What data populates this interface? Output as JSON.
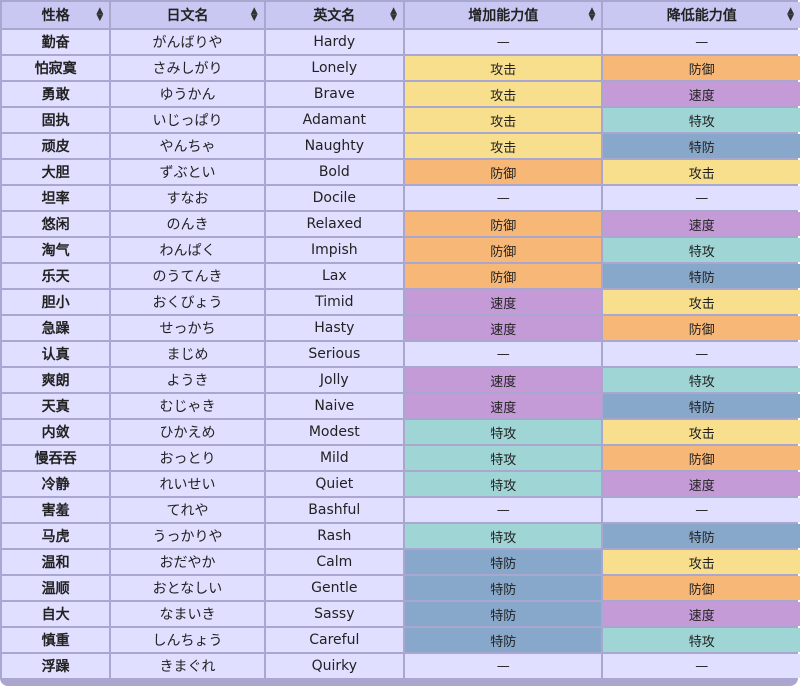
{
  "headers": [
    {
      "label": "性格"
    },
    {
      "label": "日文名"
    },
    {
      "label": "英文名"
    },
    {
      "label": "增加能力值"
    },
    {
      "label": "降低能力值"
    }
  ],
  "sort_glyph_up": "▲",
  "sort_glyph_down": "▼",
  "stat_colors": {
    "攻击": "#f8df8d",
    "防御": "#f7b877",
    "速度": "#c49bd6",
    "特攻": "#a0d5d6",
    "特防": "#87a8ca",
    "—": "#e0dfff"
  },
  "rows": [
    {
      "nature": "勤奋",
      "ja": "がんばりや",
      "en": "Hardy",
      "up": "—",
      "down": "—"
    },
    {
      "nature": "怕寂寞",
      "ja": "さみしがり",
      "en": "Lonely",
      "up": "攻击",
      "down": "防御"
    },
    {
      "nature": "勇敢",
      "ja": "ゆうかん",
      "en": "Brave",
      "up": "攻击",
      "down": "速度"
    },
    {
      "nature": "固执",
      "ja": "いじっぱり",
      "en": "Adamant",
      "up": "攻击",
      "down": "特攻"
    },
    {
      "nature": "顽皮",
      "ja": "やんちゃ",
      "en": "Naughty",
      "up": "攻击",
      "down": "特防"
    },
    {
      "nature": "大胆",
      "ja": "ずぶとい",
      "en": "Bold",
      "up": "防御",
      "down": "攻击"
    },
    {
      "nature": "坦率",
      "ja": "すなお",
      "en": "Docile",
      "up": "—",
      "down": "—"
    },
    {
      "nature": "悠闲",
      "ja": "のんき",
      "en": "Relaxed",
      "up": "防御",
      "down": "速度"
    },
    {
      "nature": "淘气",
      "ja": "わんぱく",
      "en": "Impish",
      "up": "防御",
      "down": "特攻"
    },
    {
      "nature": "乐天",
      "ja": "のうてんき",
      "en": "Lax",
      "up": "防御",
      "down": "特防"
    },
    {
      "nature": "胆小",
      "ja": "おくびょう",
      "en": "Timid",
      "up": "速度",
      "down": "攻击"
    },
    {
      "nature": "急躁",
      "ja": "せっかち",
      "en": "Hasty",
      "up": "速度",
      "down": "防御"
    },
    {
      "nature": "认真",
      "ja": "まじめ",
      "en": "Serious",
      "up": "—",
      "down": "—"
    },
    {
      "nature": "爽朗",
      "ja": "ようき",
      "en": "Jolly",
      "up": "速度",
      "down": "特攻"
    },
    {
      "nature": "天真",
      "ja": "むじゃき",
      "en": "Naive",
      "up": "速度",
      "down": "特防"
    },
    {
      "nature": "内敛",
      "ja": "ひかえめ",
      "en": "Modest",
      "up": "特攻",
      "down": "攻击"
    },
    {
      "nature": "慢吞吞",
      "ja": "おっとり",
      "en": "Mild",
      "up": "特攻",
      "down": "防御"
    },
    {
      "nature": "冷静",
      "ja": "れいせい",
      "en": "Quiet",
      "up": "特攻",
      "down": "速度"
    },
    {
      "nature": "害羞",
      "ja": "てれや",
      "en": "Bashful",
      "up": "—",
      "down": "—"
    },
    {
      "nature": "马虎",
      "ja": "うっかりや",
      "en": "Rash",
      "up": "特攻",
      "down": "特防"
    },
    {
      "nature": "温和",
      "ja": "おだやか",
      "en": "Calm",
      "up": "特防",
      "down": "攻击"
    },
    {
      "nature": "温顺",
      "ja": "おとなしい",
      "en": "Gentle",
      "up": "特防",
      "down": "防御"
    },
    {
      "nature": "自大",
      "ja": "なまいき",
      "en": "Sassy",
      "up": "特防",
      "down": "速度"
    },
    {
      "nature": "慎重",
      "ja": "しんちょう",
      "en": "Careful",
      "up": "特防",
      "down": "特攻"
    },
    {
      "nature": "浮躁",
      "ja": "きまぐれ",
      "en": "Quirky",
      "up": "—",
      "down": "—"
    }
  ]
}
